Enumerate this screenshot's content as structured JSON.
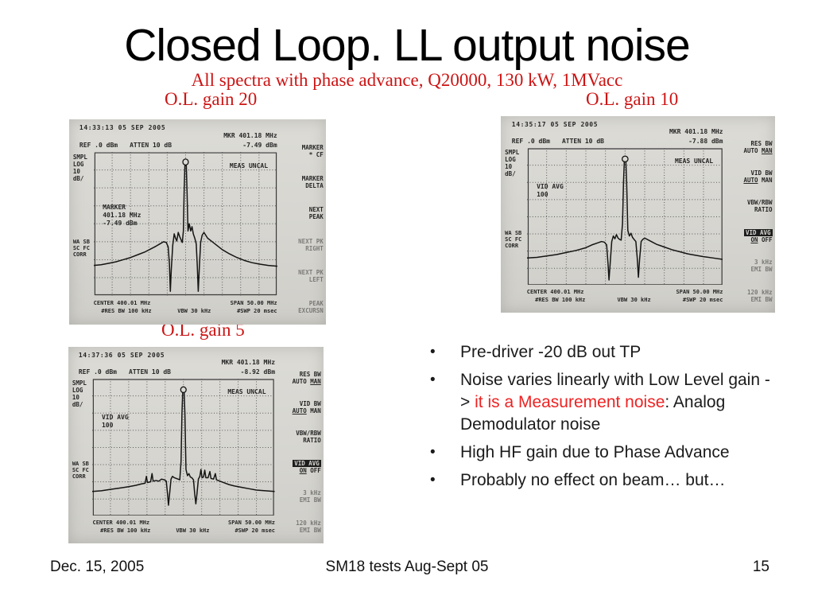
{
  "slide": {
    "title": "Closed Loop. LL output noise",
    "subtitle": "All spectra with phase advance, Q20000, 130 kW, 1MVacc",
    "gain_labels": [
      "O.L. gain 20",
      "O.L. gain 10",
      "O.L. gain 5"
    ],
    "footer": {
      "date": "Dec. 15, 2005",
      "center": "SM18 tests Aug-Sept 05",
      "page": "15"
    },
    "colors": {
      "red_serif": "#cc1414",
      "red_accent": "#ee2222"
    }
  },
  "bullets": [
    {
      "segments": [
        {
          "text": "Pre-driver -20 dB out TP"
        }
      ]
    },
    {
      "segments": [
        {
          "text": "Noise varies linearly with Low Level gain -> "
        },
        {
          "text": "it is a Measurement noise",
          "red": true
        },
        {
          "text": ": Analog Demodulator noise"
        }
      ]
    },
    {
      "segments": [
        {
          "text": "High HF gain due to Phase Advance"
        }
      ]
    },
    {
      "segments": [
        {
          "text": "Probably no effect on beam… but…"
        }
      ]
    }
  ],
  "panels": [
    {
      "gain": "O.L. gain 20",
      "timestamp": "14:33:13  05 SEP 2005",
      "ref": "REF .0 dBm",
      "atten": "ATTEN 10 dB",
      "mkr_freq": "MKR 401.18 MHz",
      "mkr_ampl": "-7.49 dBm",
      "left_labels": [
        "SMPL",
        "LOG",
        "10",
        "dB/"
      ],
      "corr_labels": [
        "WA SB",
        "SC FC",
        "CORR"
      ],
      "meas_uncal": "MEAS UNCAL",
      "annotation": [
        "MARKER",
        "401.18 MHz",
        "-7.49 dBm"
      ],
      "menu": [
        {
          "lines": [
            "MARKER",
            "* CF"
          ]
        },
        {
          "lines": [
            "MARKER",
            "DELTA"
          ]
        },
        {
          "lines": [
            "NEXT",
            "PEAK"
          ]
        },
        {
          "lines": [
            "NEXT PK",
            "RIGHT"
          ],
          "dim": true
        },
        {
          "lines": [
            "NEXT PK",
            "LEFT"
          ],
          "dim": true
        },
        {
          "lines": [
            "PEAK",
            "EXCURSN"
          ],
          "dim": true
        }
      ],
      "center": "CENTER 400.01 MHz",
      "span": "SPAN 50.00 MHz",
      "res_bw": "#RES BW 100 kHz",
      "vbw": "VBW 30 kHz",
      "sweep": "#SWP 20 msec",
      "marker": [
        50,
        7
      ],
      "trace": [
        [
          0,
          79
        ],
        [
          4,
          78.5
        ],
        [
          8,
          77.5
        ],
        [
          12,
          76.5
        ],
        [
          16,
          75
        ],
        [
          20,
          73.5
        ],
        [
          24,
          71.5
        ],
        [
          28,
          69.5
        ],
        [
          31,
          67.5
        ],
        [
          34,
          65.5
        ],
        [
          36,
          64
        ],
        [
          38,
          62.5
        ],
        [
          39.5,
          63
        ],
        [
          40.5,
          66
        ],
        [
          41.2,
          78
        ],
        [
          41.7,
          97
        ],
        [
          42.2,
          82
        ],
        [
          43,
          65
        ],
        [
          43.8,
          57
        ],
        [
          44.5,
          60
        ],
        [
          45.2,
          62
        ],
        [
          46,
          56
        ],
        [
          46.8,
          59
        ],
        [
          47.5,
          61
        ],
        [
          48.2,
          63
        ],
        [
          48.8,
          55
        ],
        [
          49.2,
          28
        ],
        [
          49.6,
          10
        ],
        [
          50,
          7
        ],
        [
          50.4,
          10
        ],
        [
          50.8,
          28
        ],
        [
          51.3,
          55
        ],
        [
          52,
          50
        ],
        [
          52.8,
          55
        ],
        [
          53.5,
          52
        ],
        [
          54.2,
          57
        ],
        [
          55,
          60
        ],
        [
          55.8,
          64
        ],
        [
          56.4,
          80
        ],
        [
          56.9,
          97
        ],
        [
          57.5,
          80
        ],
        [
          58.2,
          63
        ],
        [
          59,
          58
        ],
        [
          60,
          56
        ],
        [
          61,
          58
        ],
        [
          62,
          60
        ],
        [
          64,
          62
        ],
        [
          66,
          64
        ],
        [
          68,
          66
        ],
        [
          70,
          68
        ],
        [
          74,
          71
        ],
        [
          78,
          73.5
        ],
        [
          82,
          75.5
        ],
        [
          86,
          77
        ],
        [
          90,
          78
        ],
        [
          95,
          79
        ],
        [
          100,
          79.5
        ]
      ]
    },
    {
      "gain": "O.L. gain 10",
      "timestamp": "14:35:17  05 SEP 2005",
      "ref": "REF .0 dBm",
      "atten": "ATTEN 10 dB",
      "mkr_freq": "MKR 401.18 MHz",
      "mkr_ampl": "-7.88 dBm",
      "left_labels": [
        "SMPL",
        "LOG",
        "10",
        "dB/"
      ],
      "corr_labels": [
        "WA SB",
        "SC FC",
        "CORR"
      ],
      "meas_uncal": "MEAS UNCAL",
      "annotation": [
        "VID AVG",
        "100"
      ],
      "menu": [
        {
          "lines": [
            "RES BW",
            "AUTO _MAN_"
          ]
        },
        {
          "lines": [
            "VID BW",
            "_AUTO_ MAN"
          ]
        },
        {
          "lines": [
            "VBW/RBW",
            "RATIO"
          ]
        },
        {
          "lines": [
            "VID AVG",
            "_ON_  OFF"
          ],
          "invert_first": true
        },
        {
          "lines": [
            "3 kHz",
            "EMI BW"
          ],
          "dim": true
        },
        {
          "lines": [
            "120 kHz",
            "EMI BW"
          ],
          "dim": true
        }
      ],
      "center": "CENTER 400.01 MHz",
      "span": "SPAN 50.00 MHz",
      "res_bw": "#RES BW 100 kHz",
      "vbw": "VBW 30 kHz",
      "sweep": "#SWP 20 msec",
      "marker": [
        50,
        8
      ],
      "trace": [
        [
          0,
          80
        ],
        [
          5,
          79.5
        ],
        [
          10,
          78.5
        ],
        [
          15,
          77.5
        ],
        [
          20,
          76
        ],
        [
          25,
          74.5
        ],
        [
          30,
          72.5
        ],
        [
          33,
          70.5
        ],
        [
          36,
          69
        ],
        [
          38,
          68
        ],
        [
          39.5,
          68.5
        ],
        [
          40.6,
          70.5
        ],
        [
          41.3,
          84
        ],
        [
          41.8,
          96
        ],
        [
          42.4,
          84
        ],
        [
          43.2,
          68
        ],
        [
          44,
          64
        ],
        [
          44.8,
          66
        ],
        [
          45.6,
          63
        ],
        [
          46.4,
          65.5
        ],
        [
          47.2,
          66.5
        ],
        [
          48,
          67
        ],
        [
          48.7,
          55
        ],
        [
          49.2,
          25
        ],
        [
          49.6,
          10
        ],
        [
          50,
          8
        ],
        [
          50.4,
          10
        ],
        [
          50.8,
          25
        ],
        [
          51.4,
          60
        ],
        [
          52.2,
          64
        ],
        [
          53,
          62
        ],
        [
          53.8,
          65
        ],
        [
          54.6,
          66.5
        ],
        [
          55.5,
          68
        ],
        [
          56.2,
          80
        ],
        [
          56.8,
          94
        ],
        [
          57.4,
          81
        ],
        [
          58.2,
          68
        ],
        [
          59,
          66.5
        ],
        [
          60,
          65.5
        ],
        [
          62,
          67
        ],
        [
          64,
          68.5
        ],
        [
          66,
          70
        ],
        [
          68,
          71
        ],
        [
          70,
          72
        ],
        [
          74,
          74
        ],
        [
          78,
          75.5
        ],
        [
          82,
          77
        ],
        [
          86,
          78
        ],
        [
          90,
          79
        ],
        [
          95,
          80
        ],
        [
          100,
          81
        ]
      ]
    },
    {
      "gain": "O.L. gain 5",
      "timestamp": "14:37:36  05 SEP 2005",
      "ref": "REF .0 dBm",
      "atten": "ATTEN 10 dB",
      "mkr_freq": "MKR 401.18 MHz",
      "mkr_ampl": "-8.92 dBm",
      "left_labels": [
        "SMPL",
        "LOG",
        "10",
        "dB/"
      ],
      "corr_labels": [
        "WA SB",
        "SC FC",
        "CORR"
      ],
      "meas_uncal": "MEAS UNCAL",
      "annotation": [
        "VID AVG",
        "100"
      ],
      "menu": [
        {
          "lines": [
            "RES BW",
            "AUTO _MAN_"
          ]
        },
        {
          "lines": [
            "VID BW",
            "_AUTO_ MAN"
          ]
        },
        {
          "lines": [
            "VBW/RBW",
            "RATIO"
          ]
        },
        {
          "lines": [
            "VID AVG",
            "_ON_  OFF"
          ],
          "invert_first": true
        },
        {
          "lines": [
            "3 kHz",
            "EMI BW"
          ],
          "dim": true
        },
        {
          "lines": [
            "120 kHz",
            "EMI BW"
          ],
          "dim": true
        }
      ],
      "center": "CENTER 400.01 MHz",
      "span": "SPAN 50.00 MHz",
      "res_bw": "#RES BW 100 kHz",
      "vbw": "VBW 30 kHz",
      "sweep": "#SWP 20 msec",
      "marker": [
        50,
        8
      ],
      "trace": [
        [
          0,
          82
        ],
        [
          5,
          81.5
        ],
        [
          10,
          80.5
        ],
        [
          15,
          79.5
        ],
        [
          20,
          78.5
        ],
        [
          24,
          77.5
        ],
        [
          27,
          76.5
        ],
        [
          29,
          76
        ],
        [
          29.7,
          71
        ],
        [
          30.3,
          75.5
        ],
        [
          32,
          75
        ],
        [
          32.8,
          69
        ],
        [
          33.4,
          74.5
        ],
        [
          35,
          74
        ],
        [
          36.5,
          74.5
        ],
        [
          38,
          73
        ],
        [
          39.5,
          73.5
        ],
        [
          40.6,
          74.5
        ],
        [
          41.3,
          84
        ],
        [
          41.8,
          92
        ],
        [
          42.4,
          84
        ],
        [
          43.2,
          73
        ],
        [
          44,
          71
        ],
        [
          45,
          72
        ],
        [
          46,
          72.5
        ],
        [
          47,
          73
        ],
        [
          48,
          73.5
        ],
        [
          48.7,
          60
        ],
        [
          49.2,
          25
        ],
        [
          49.6,
          10
        ],
        [
          50,
          8
        ],
        [
          50.4,
          10
        ],
        [
          50.8,
          25
        ],
        [
          51.4,
          66
        ],
        [
          52.2,
          70.5
        ],
        [
          53,
          69
        ],
        [
          53.8,
          71.5
        ],
        [
          54.6,
          72
        ],
        [
          55.5,
          73.5
        ],
        [
          56.2,
          84
        ],
        [
          56.8,
          91
        ],
        [
          57.4,
          84
        ],
        [
          58.2,
          73
        ],
        [
          59,
          71
        ],
        [
          59.6,
          66
        ],
        [
          60.2,
          72
        ],
        [
          61,
          71.5
        ],
        [
          61.7,
          66.5
        ],
        [
          62.3,
          72
        ],
        [
          63.5,
          72
        ],
        [
          64.5,
          67.5
        ],
        [
          65.1,
          72.5
        ],
        [
          66.5,
          73
        ],
        [
          67.5,
          69
        ],
        [
          68.1,
          73.5
        ],
        [
          70,
          74.5
        ],
        [
          72,
          75.5
        ],
        [
          75,
          77
        ],
        [
          78,
          78
        ],
        [
          82,
          79
        ],
        [
          86,
          80
        ],
        [
          90,
          81
        ],
        [
          95,
          81.5
        ],
        [
          100,
          82
        ]
      ]
    }
  ]
}
